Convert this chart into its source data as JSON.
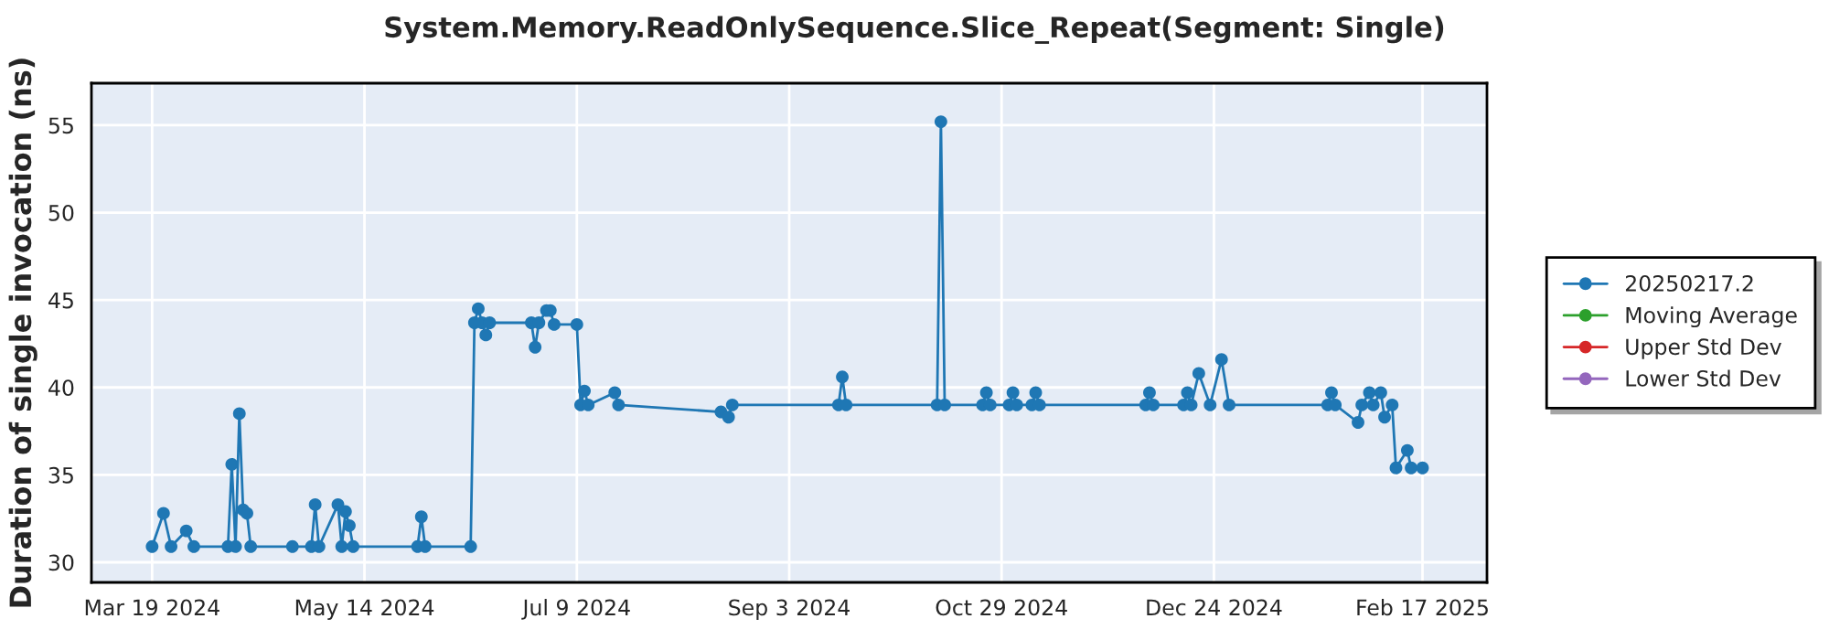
{
  "chart_data": {
    "type": "line",
    "title": "System.Memory.ReadOnlySequence.Slice_Repeat(Segment: Single)",
    "ylabel": "Duration of single invocation (ns)",
    "series": [
      {
        "name": "20250217.2",
        "color": "#1f77b4",
        "x": [
          "2024-03-19",
          "2024-03-22",
          "2024-03-24",
          "2024-03-28",
          "2024-03-30",
          "2024-04-08",
          "2024-04-09",
          "2024-04-10",
          "2024-04-11",
          "2024-04-12",
          "2024-04-13",
          "2024-04-14",
          "2024-04-25",
          "2024-04-30",
          "2024-05-01",
          "2024-05-02",
          "2024-05-07",
          "2024-05-08",
          "2024-05-09",
          "2024-05-10",
          "2024-05-11",
          "2024-05-28",
          "2024-05-29",
          "2024-05-30",
          "2024-06-11",
          "2024-06-12",
          "2024-06-13",
          "2024-06-14",
          "2024-06-15",
          "2024-06-16",
          "2024-06-27",
          "2024-06-28",
          "2024-06-29",
          "2024-07-01",
          "2024-07-02",
          "2024-07-03",
          "2024-07-09",
          "2024-07-10",
          "2024-07-11",
          "2024-07-12",
          "2024-07-19",
          "2024-07-20",
          "2024-08-16",
          "2024-08-18",
          "2024-08-19",
          "2024-09-16",
          "2024-09-17",
          "2024-09-18",
          "2024-10-12",
          "2024-10-13",
          "2024-10-14",
          "2024-10-24",
          "2024-10-25",
          "2024-10-26",
          "2024-10-31",
          "2024-11-01",
          "2024-11-02",
          "2024-11-06",
          "2024-11-07",
          "2024-11-08",
          "2024-12-06",
          "2024-12-07",
          "2024-12-08",
          "2024-12-16",
          "2024-12-17",
          "2024-12-18",
          "2024-12-20",
          "2024-12-23",
          "2024-12-26",
          "2024-12-28",
          "2025-01-23",
          "2025-01-24",
          "2025-01-25",
          "2025-01-31",
          "2025-02-01",
          "2025-02-03",
          "2025-02-04",
          "2025-02-06",
          "2025-02-07",
          "2025-02-09",
          "2025-02-10",
          "2025-02-13",
          "2025-02-14",
          "2025-02-17"
        ],
        "values": [
          30.9,
          32.8,
          30.9,
          31.8,
          30.9,
          30.9,
          35.6,
          30.9,
          38.5,
          33.0,
          32.8,
          30.9,
          30.9,
          30.9,
          33.3,
          30.9,
          33.3,
          30.9,
          32.9,
          32.1,
          30.9,
          30.9,
          32.6,
          30.9,
          30.9,
          43.7,
          44.5,
          43.7,
          43.0,
          43.7,
          43.7,
          42.3,
          43.7,
          44.4,
          44.4,
          43.6,
          43.6,
          39.0,
          39.8,
          39.0,
          39.7,
          39.0,
          38.6,
          38.3,
          39.0,
          39.0,
          40.6,
          39.0,
          39.0,
          55.2,
          39.0,
          39.0,
          39.7,
          39.0,
          39.0,
          39.7,
          39.0,
          39.0,
          39.7,
          39.0,
          39.0,
          39.7,
          39.0,
          39.0,
          39.7,
          39.0,
          40.8,
          39.0,
          41.6,
          39.0,
          39.0,
          39.7,
          39.0,
          38.0,
          39.0,
          39.7,
          39.0,
          39.7,
          38.3,
          39.0,
          35.4,
          36.4,
          35.4,
          35.4
        ]
      },
      {
        "name": "Moving Average",
        "color": "#2ca02c"
      },
      {
        "name": "Upper Std Dev",
        "color": "#d62728"
      },
      {
        "name": "Lower Std Dev",
        "color": "#9467bd"
      }
    ],
    "xlim": [
      "2024-03-03",
      "2025-03-06"
    ],
    "xticks": [
      {
        "value": "2024-03-19",
        "label": "Mar 19 2024"
      },
      {
        "value": "2024-05-14",
        "label": "May 14 2024"
      },
      {
        "value": "2024-07-09",
        "label": "Jul 9 2024"
      },
      {
        "value": "2024-09-03",
        "label": "Sep 3 2024"
      },
      {
        "value": "2024-10-29",
        "label": "Oct 29 2024"
      },
      {
        "value": "2024-12-24",
        "label": "Dec 24 2024"
      },
      {
        "value": "2025-02-17",
        "label": "Feb 17 2025"
      }
    ],
    "ylim": [
      28.85,
      57.4
    ],
    "yticks": [
      30,
      35,
      40,
      45,
      50,
      55
    ],
    "grid": true,
    "legend": "right",
    "marker": "circle",
    "line_style": "solid"
  }
}
